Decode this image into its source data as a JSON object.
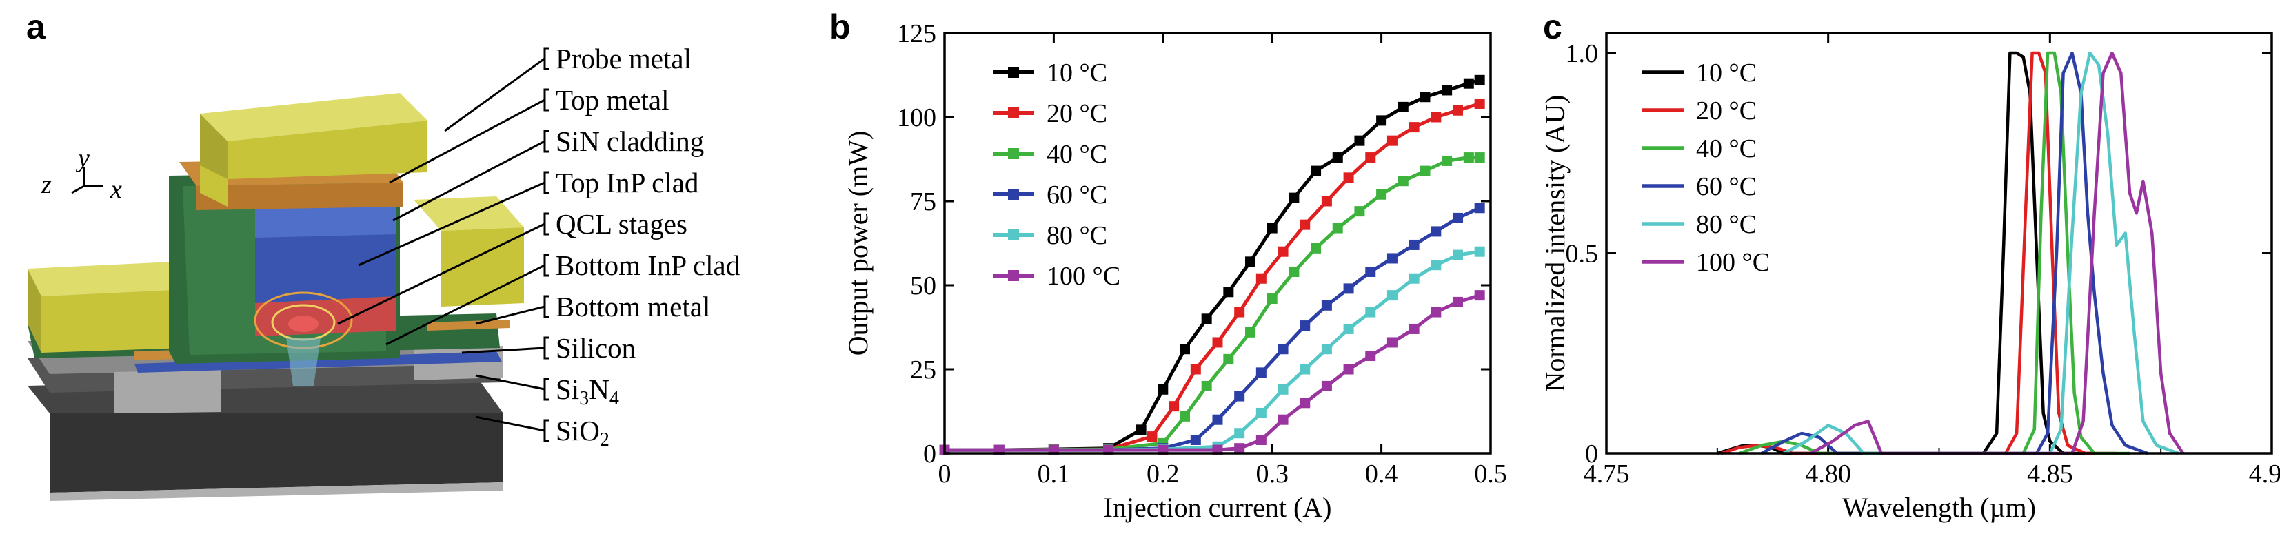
{
  "panels": {
    "a": {
      "letter": "a",
      "axes_labels": {
        "z": "z",
        "y": "y",
        "x": "x"
      },
      "layer_labels": [
        "Probe metal",
        "Top metal",
        "SiN cladding",
        "Top InP clad",
        "QCL stages",
        "Bottom InP clad",
        "Bottom metal",
        "Silicon",
        "Si3N4",
        "SiO2"
      ],
      "si3n4": {
        "base": "Si",
        "sub1": "3",
        "mid": "N",
        "sub2": "4"
      },
      "sio2": {
        "base": "SiO",
        "sub": "2"
      },
      "colors": {
        "metal": "#c8c43a",
        "copper": "#c98a3a",
        "green": "#2e6a3c",
        "blue": "#3a55b0",
        "gray": "#9b9b9b",
        "dark": "#333333"
      }
    },
    "b": {
      "letter": "b"
    },
    "c": {
      "letter": "c"
    }
  },
  "chart_data": [
    {
      "type": "line",
      "panel": "b",
      "xlabel": "Injection current (A)",
      "ylabel": "Output power (mW)",
      "xlim": [
        0,
        0.5
      ],
      "ylim": [
        0,
        125
      ],
      "xticks": [
        "0",
        "0.1",
        "0.2",
        "0.3",
        "0.4",
        "0.5"
      ],
      "yticks": [
        "0",
        "25",
        "50",
        "75",
        "100",
        "125"
      ],
      "legend_position": "top-left",
      "series": [
        {
          "name": "10 °C",
          "color": "#000000",
          "x": [
            0.0,
            0.05,
            0.1,
            0.15,
            0.18,
            0.2,
            0.22,
            0.24,
            0.26,
            0.28,
            0.3,
            0.32,
            0.34,
            0.36,
            0.38,
            0.4,
            0.42,
            0.44,
            0.46,
            0.48,
            0.49
          ],
          "y": [
            1,
            1,
            1.2,
            1.5,
            7,
            19,
            31,
            40,
            48,
            57,
            67,
            76,
            84,
            88,
            93,
            99,
            103,
            106,
            108,
            110,
            111
          ]
        },
        {
          "name": "20 °C",
          "color": "#e02020",
          "x": [
            0.0,
            0.05,
            0.1,
            0.15,
            0.19,
            0.21,
            0.23,
            0.25,
            0.27,
            0.29,
            0.31,
            0.33,
            0.35,
            0.37,
            0.39,
            0.41,
            0.43,
            0.45,
            0.47,
            0.49
          ],
          "y": [
            1,
            1,
            1.1,
            1.2,
            5,
            14,
            25,
            33,
            42,
            52,
            60,
            68,
            75,
            82,
            88,
            93,
            97,
            100,
            102,
            104
          ]
        },
        {
          "name": "40 °C",
          "color": "#3db33d",
          "x": [
            0.0,
            0.05,
            0.1,
            0.15,
            0.2,
            0.22,
            0.24,
            0.26,
            0.28,
            0.3,
            0.32,
            0.34,
            0.36,
            0.38,
            0.4,
            0.42,
            0.44,
            0.46,
            0.48,
            0.49
          ],
          "y": [
            1,
            1,
            1.1,
            1.2,
            3,
            11,
            20,
            28,
            36,
            46,
            54,
            61,
            67,
            72,
            77,
            81,
            84,
            87,
            88,
            88
          ]
        },
        {
          "name": "60 °C",
          "color": "#2b3fa6",
          "x": [
            0.0,
            0.05,
            0.1,
            0.15,
            0.2,
            0.23,
            0.25,
            0.27,
            0.29,
            0.31,
            0.33,
            0.35,
            0.37,
            0.39,
            0.41,
            0.43,
            0.45,
            0.47,
            0.49
          ],
          "y": [
            1,
            1,
            1,
            1,
            1.5,
            4,
            10,
            17,
            24,
            31,
            38,
            44,
            49,
            54,
            58,
            62,
            66,
            70,
            73
          ]
        },
        {
          "name": "80 °C",
          "color": "#55c7c7",
          "x": [
            0.0,
            0.05,
            0.1,
            0.15,
            0.2,
            0.25,
            0.27,
            0.29,
            0.31,
            0.33,
            0.35,
            0.37,
            0.39,
            0.41,
            0.43,
            0.45,
            0.47,
            0.49
          ],
          "y": [
            1,
            1,
            1,
            1,
            1.2,
            2,
            6,
            12,
            19,
            25,
            31,
            37,
            42,
            47,
            52,
            56,
            59,
            60
          ]
        },
        {
          "name": "100 °C",
          "color": "#9a35a0",
          "x": [
            0.0,
            0.05,
            0.1,
            0.15,
            0.2,
            0.25,
            0.27,
            0.29,
            0.31,
            0.33,
            0.35,
            0.37,
            0.39,
            0.41,
            0.43,
            0.45,
            0.47,
            0.49
          ],
          "y": [
            1,
            1,
            1,
            1,
            1,
            1,
            1.5,
            4,
            10,
            15,
            20,
            25,
            29,
            33,
            37,
            42,
            45,
            47
          ]
        }
      ]
    },
    {
      "type": "line",
      "panel": "c",
      "xlabel": "Wavelength (µm)",
      "ylabel": "Normalized intensity (AU)",
      "xlim": [
        4.75,
        4.9
      ],
      "ylim": [
        0,
        1.05
      ],
      "xticks": [
        "4.75",
        "4.80",
        "4.85",
        "4.90"
      ],
      "yticks": [
        "0",
        "0.5",
        "1.0"
      ],
      "legend_position": "top-left",
      "series": [
        {
          "name": "10 °C",
          "color": "#000000",
          "x": [
            4.775,
            4.778,
            4.781,
            4.784,
            4.787,
            4.79,
            4.835,
            4.838,
            4.8395,
            4.841,
            4.8425,
            4.844,
            4.8455,
            4.847,
            4.8485,
            4.85,
            4.853,
            4.86
          ],
          "y": [
            0,
            0.01,
            0.02,
            0.02,
            0.015,
            0,
            0,
            0.05,
            0.5,
            1.0,
            1.0,
            0.99,
            0.9,
            0.5,
            0.1,
            0.03,
            0,
            0
          ]
        },
        {
          "name": "20 °C",
          "color": "#e02020",
          "x": [
            4.776,
            4.78,
            4.784,
            4.788,
            4.792,
            4.84,
            4.8425,
            4.8445,
            4.846,
            4.8475,
            4.849,
            4.8505,
            4.852,
            4.854,
            4.858,
            4.865
          ],
          "y": [
            0,
            0.015,
            0.02,
            0.015,
            0,
            0,
            0.05,
            0.6,
            1.0,
            1.0,
            0.95,
            0.5,
            0.1,
            0.02,
            0,
            0
          ]
        },
        {
          "name": "40 °C",
          "color": "#3db33d",
          "x": [
            4.78,
            4.785,
            4.79,
            4.794,
            4.798,
            4.844,
            4.8465,
            4.848,
            4.8495,
            4.851,
            4.8525,
            4.854,
            4.8555,
            4.857,
            4.86,
            4.868
          ],
          "y": [
            0,
            0.02,
            0.03,
            0.02,
            0,
            0,
            0.06,
            0.6,
            1.0,
            1.0,
            0.9,
            0.5,
            0.15,
            0.04,
            0,
            0
          ]
        },
        {
          "name": "60 °C",
          "color": "#2b3fa6",
          "x": [
            4.785,
            4.79,
            4.794,
            4.798,
            4.802,
            4.847,
            4.8495,
            4.8515,
            4.853,
            4.855,
            4.857,
            4.8585,
            4.86,
            4.862,
            4.864,
            4.867,
            4.872
          ],
          "y": [
            0,
            0.03,
            0.05,
            0.04,
            0,
            0,
            0.05,
            0.5,
            0.95,
            1.0,
            0.9,
            0.6,
            0.4,
            0.2,
            0.07,
            0.02,
            0
          ]
        },
        {
          "name": "80 °C",
          "color": "#55c7c7",
          "x": [
            4.79,
            4.795,
            4.8,
            4.804,
            4.808,
            4.85,
            4.8525,
            4.855,
            4.857,
            4.859,
            4.861,
            4.863,
            4.865,
            4.867,
            4.869,
            4.871,
            4.874,
            4.879
          ],
          "y": [
            0,
            0.03,
            0.07,
            0.05,
            0,
            0,
            0.06,
            0.55,
            0.9,
            1.0,
            0.97,
            0.8,
            0.52,
            0.55,
            0.3,
            0.08,
            0.02,
            0
          ]
        },
        {
          "name": "100 °C",
          "color": "#9a35a0",
          "x": [
            4.796,
            4.801,
            4.806,
            4.809,
            4.812,
            4.855,
            4.8575,
            4.86,
            4.862,
            4.864,
            4.866,
            4.868,
            4.8695,
            4.871,
            4.873,
            4.875,
            4.877,
            4.88
          ],
          "y": [
            0,
            0.03,
            0.07,
            0.08,
            0,
            0,
            0.08,
            0.6,
            0.95,
            1.0,
            0.95,
            0.65,
            0.6,
            0.68,
            0.55,
            0.2,
            0.05,
            0
          ]
        }
      ]
    }
  ]
}
